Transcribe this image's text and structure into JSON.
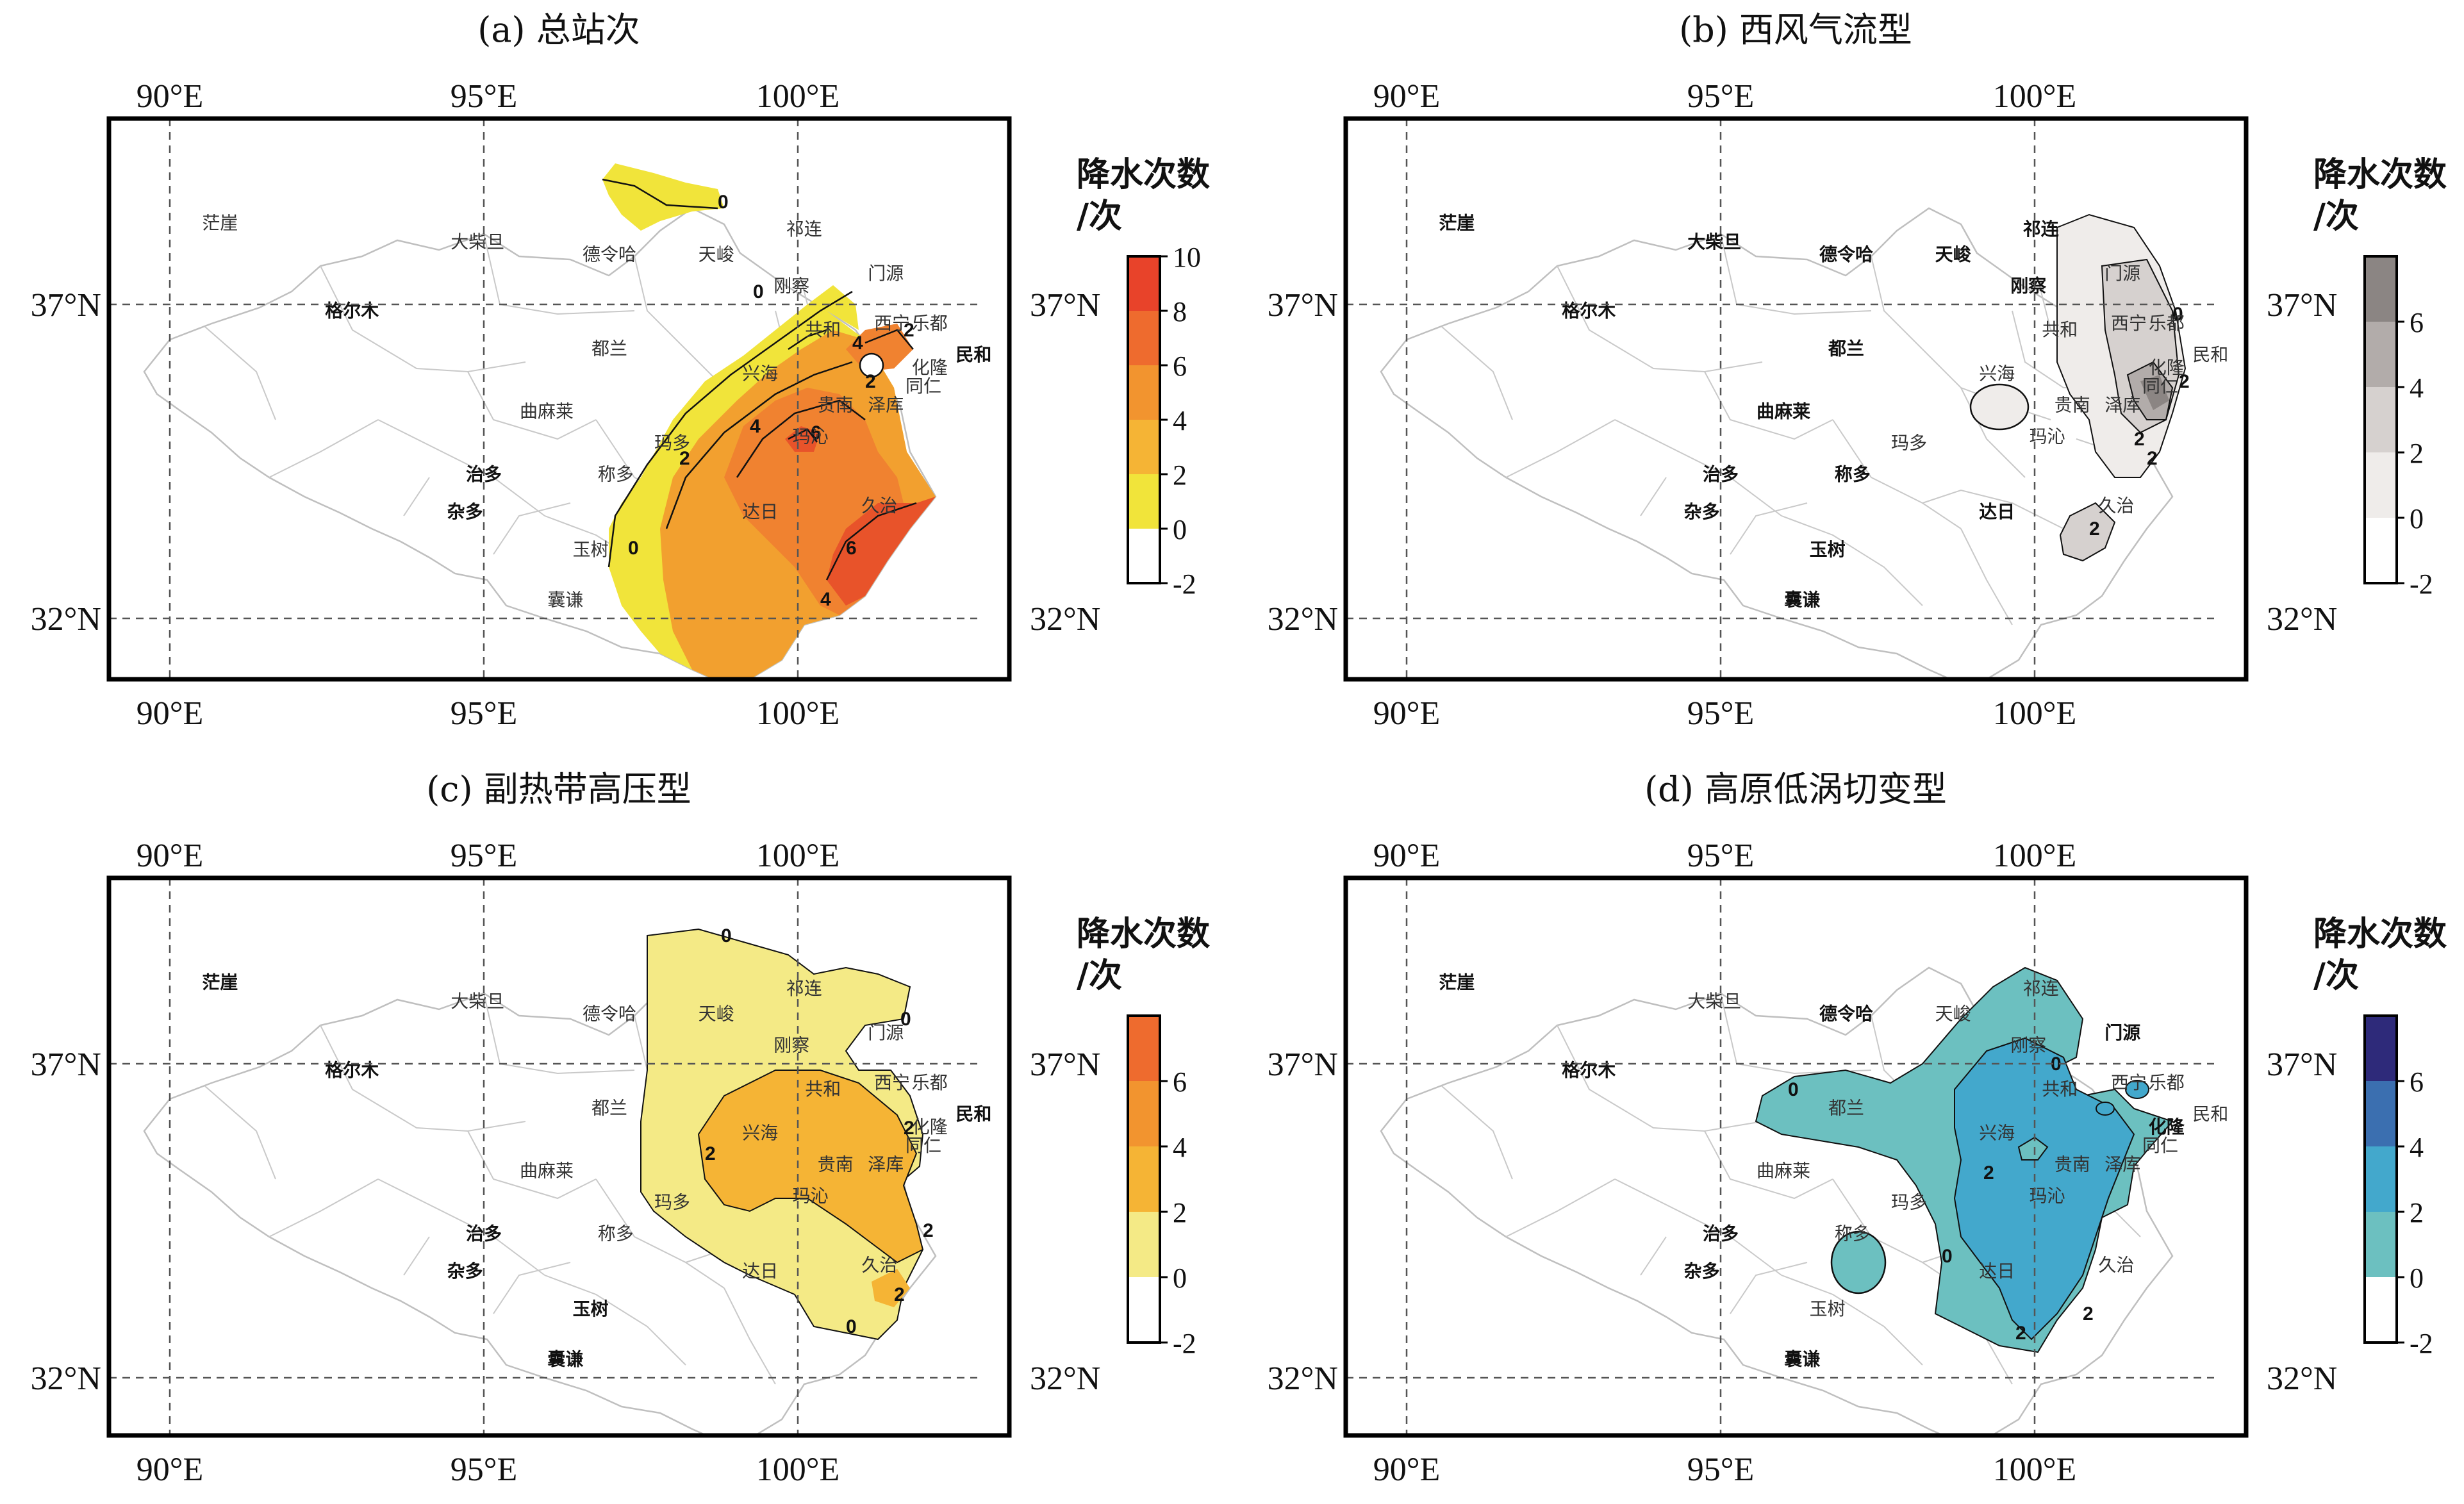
{
  "panels": [
    {
      "id": "a",
      "title": "(a) 总站次",
      "colorbar": {
        "title_line1": "降水次数",
        "title_line2": "/次",
        "ticks": [
          "10",
          "8",
          "6",
          "4",
          "2",
          "0",
          "-2"
        ],
        "colors": [
          "#e8432a",
          "#ee6b2e",
          "#f2942f",
          "#f5b435",
          "#f1e43a",
          "#ffffff"
        ]
      },
      "contour_labels": [
        "0",
        "0",
        "0",
        "2",
        "2",
        "2",
        "4",
        "4",
        "4",
        "6",
        "6"
      ]
    },
    {
      "id": "b",
      "title": "(b) 西风气流型",
      "colorbar": {
        "title_line1": "降水次数",
        "title_line2": "/次",
        "ticks": [
          "6",
          "4",
          "2",
          "0",
          "-2"
        ],
        "colors": [
          "#8b8583",
          "#b2acaa",
          "#d6d1cf",
          "#efecea",
          "#ffffff"
        ]
      },
      "contour_labels": [
        "0",
        "2",
        "2",
        "2",
        "2"
      ]
    },
    {
      "id": "c",
      "title": "(c) 副热带高压型",
      "colorbar": {
        "title_line1": "降水次数",
        "title_line2": "/次",
        "ticks": [
          "6",
          "4",
          "2",
          "0",
          "-2"
        ],
        "colors": [
          "#ee6b2e",
          "#f2942f",
          "#f5b435",
          "#f4ea86",
          "#ffffff"
        ]
      },
      "contour_labels": [
        "0",
        "0",
        "0",
        "2",
        "2",
        "2",
        "2"
      ]
    },
    {
      "id": "d",
      "title": "(d) 高原低涡切变型",
      "colorbar": {
        "title_line1": "降水次数",
        "title_line2": "/次",
        "ticks": [
          "6",
          "4",
          "2",
          "0",
          "-2"
        ],
        "colors": [
          "#2e2a7a",
          "#3b6fb0",
          "#43a8cc",
          "#6cc0c0",
          "#ffffff"
        ]
      },
      "contour_labels": [
        "0",
        "0",
        "0",
        "2",
        "2",
        "2"
      ]
    }
  ],
  "axes": {
    "lon_ticks": [
      "90°E",
      "95°E",
      "100°E"
    ],
    "lat_ticks": [
      "37°N",
      "32°N"
    ]
  },
  "cities": [
    {
      "name": "茫崖",
      "lon": 90.8,
      "lat": 38.2
    },
    {
      "name": "大柴旦",
      "lon": 94.9,
      "lat": 37.9
    },
    {
      "name": "德令哈",
      "lon": 97.0,
      "lat": 37.7
    },
    {
      "name": "天峻",
      "lon": 98.7,
      "lat": 37.7
    },
    {
      "name": "祁连",
      "lon": 100.1,
      "lat": 38.1
    },
    {
      "name": "门源",
      "lon": 101.4,
      "lat": 37.4
    },
    {
      "name": "刚察",
      "lon": 99.9,
      "lat": 37.2
    },
    {
      "name": "格尔木",
      "lon": 92.9,
      "lat": 36.8
    },
    {
      "name": "共和",
      "lon": 100.4,
      "lat": 36.5
    },
    {
      "name": "西宁",
      "lon": 101.5,
      "lat": 36.6
    },
    {
      "name": "乐都",
      "lon": 102.1,
      "lat": 36.6
    },
    {
      "name": "都兰",
      "lon": 97.0,
      "lat": 36.2
    },
    {
      "name": "民和",
      "lon": 102.8,
      "lat": 36.1
    },
    {
      "name": "化隆",
      "lon": 102.1,
      "lat": 35.9
    },
    {
      "name": "同仁",
      "lon": 102.0,
      "lat": 35.6
    },
    {
      "name": "兴海",
      "lon": 99.4,
      "lat": 35.8
    },
    {
      "name": "贵南",
      "lon": 100.6,
      "lat": 35.3
    },
    {
      "name": "泽库",
      "lon": 101.4,
      "lat": 35.3
    },
    {
      "name": "曲麻莱",
      "lon": 96.0,
      "lat": 35.2
    },
    {
      "name": "玛沁",
      "lon": 100.2,
      "lat": 34.8
    },
    {
      "name": "玛多",
      "lon": 98.0,
      "lat": 34.7
    },
    {
      "name": "治多",
      "lon": 95.0,
      "lat": 34.2
    },
    {
      "name": "称多",
      "lon": 97.1,
      "lat": 34.2
    },
    {
      "name": "杂多",
      "lon": 94.7,
      "lat": 33.6
    },
    {
      "name": "久治",
      "lon": 101.3,
      "lat": 33.7
    },
    {
      "name": "达日",
      "lon": 99.4,
      "lat": 33.6
    },
    {
      "name": "玉树",
      "lon": 96.7,
      "lat": 33.0
    },
    {
      "name": "囊谦",
      "lon": 96.3,
      "lat": 32.2
    }
  ],
  "bold_cities": {
    "a": [
      "格尔木",
      "治多",
      "杂多",
      "民和"
    ],
    "b": [
      "茫崖",
      "大柴旦",
      "德令哈",
      "天峻",
      "祁连",
      "刚察",
      "格尔木",
      "都兰",
      "曲麻莱",
      "治多",
      "杂多",
      "称多",
      "玉树",
      "达日",
      "囊谦"
    ],
    "c": [
      "茫崖",
      "格尔木",
      "治多",
      "杂多",
      "玉树",
      "囊谦",
      "民和"
    ],
    "d": [
      "茫崖",
      "格尔木",
      "德令哈",
      "门源",
      "治多",
      "杂多",
      "化隆",
      "囊谦"
    ]
  }
}
